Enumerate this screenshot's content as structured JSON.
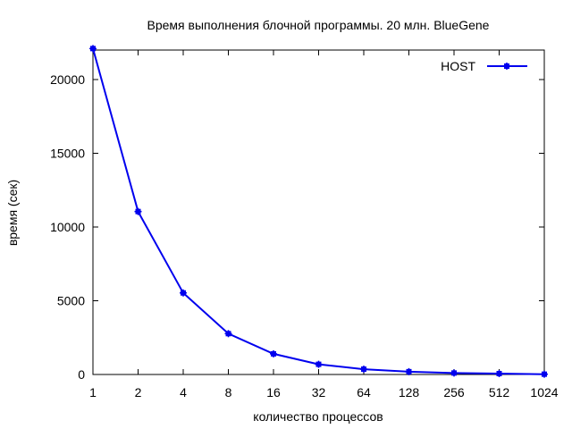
{
  "chart_data": {
    "type": "line",
    "title": "Время выполнения блочной программы. 20 млн. BlueGene",
    "xlabel": "количество процессов",
    "ylabel": "время (сек)",
    "x_scale": "log2",
    "x": [
      1,
      2,
      4,
      8,
      16,
      32,
      64,
      128,
      256,
      512,
      1024
    ],
    "x_tick_labels": [
      "1",
      "2",
      "4",
      "8",
      "16",
      "32",
      "64",
      "128",
      "256",
      "512",
      "1024"
    ],
    "ylim": [
      0,
      22000
    ],
    "y_ticks": [
      0,
      5000,
      10000,
      15000,
      20000
    ],
    "grid": false,
    "legend_position": "top-right",
    "series": [
      {
        "name": "HOST",
        "color": "#0000ee",
        "marker": "plus-square",
        "values": [
          22100,
          11050,
          5530,
          2770,
          1400,
          690,
          360,
          190,
          100,
          60,
          20
        ]
      }
    ]
  }
}
